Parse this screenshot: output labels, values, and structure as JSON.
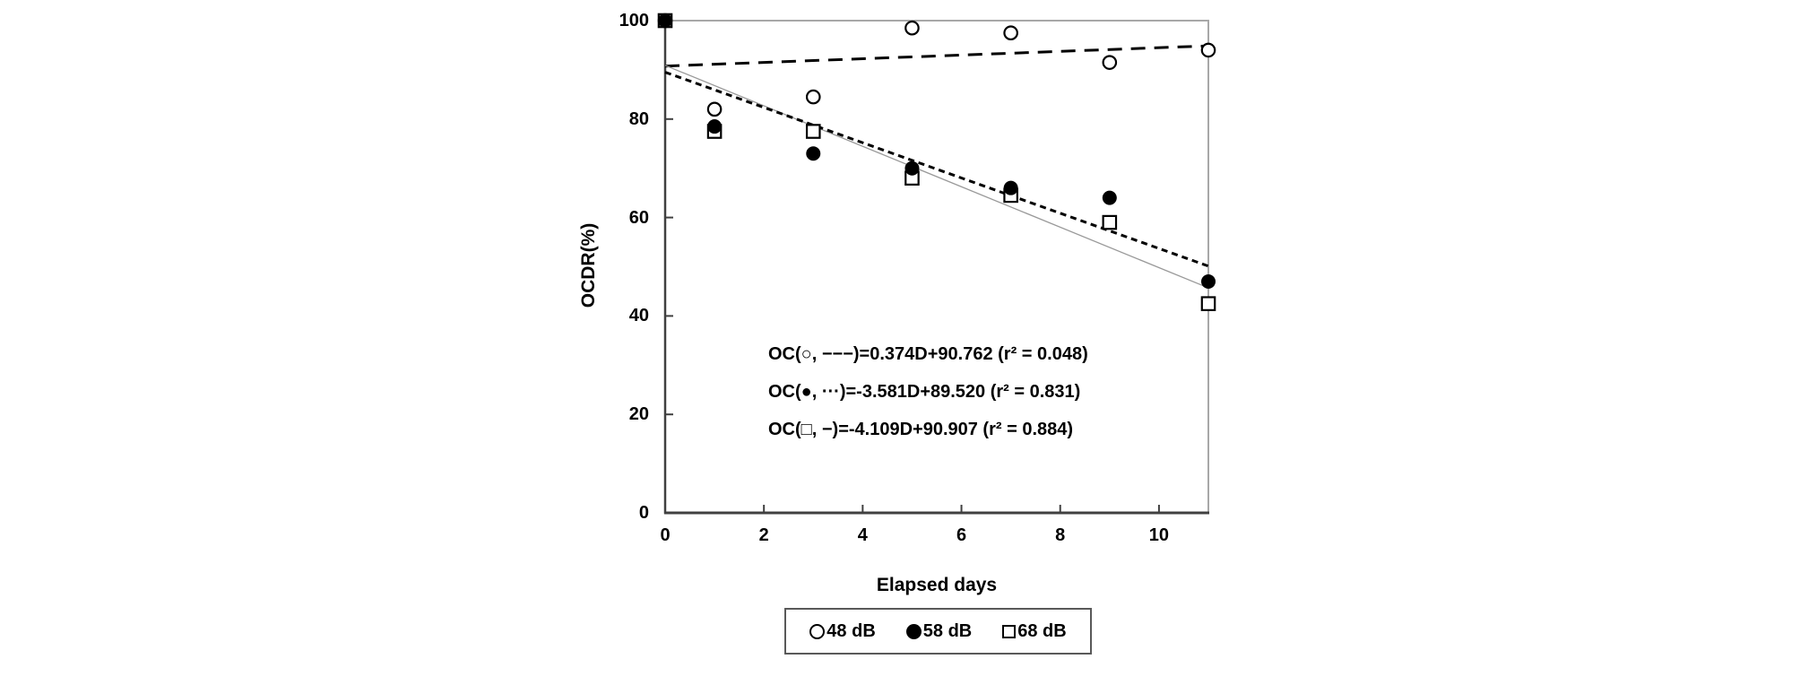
{
  "chart_data": {
    "type": "scatter",
    "title": "",
    "xlabel": "Elapsed days",
    "ylabel": "OCDR(%)",
    "xlim": [
      0,
      11
    ],
    "ylim": [
      0,
      100
    ],
    "x_ticks": [
      0,
      2,
      4,
      6,
      8,
      10
    ],
    "y_ticks": [
      0,
      20,
      40,
      60,
      80,
      100
    ],
    "grid": false,
    "legend_position": "bottom",
    "x": [
      0,
      1,
      3,
      5,
      7,
      9,
      11
    ],
    "series": [
      {
        "name": "48 dB",
        "marker": "open-circle",
        "color": "#000000",
        "values": [
          100,
          82,
          84.5,
          98.5,
          97.5,
          91.5,
          94
        ],
        "fit": {
          "slope": 0.374,
          "intercept": 90.762,
          "r2": 0.048,
          "line_style": "long-dash",
          "line_color": "#000000"
        }
      },
      {
        "name": "58 dB",
        "marker": "filled-circle",
        "color": "#000000",
        "values": [
          100,
          78.5,
          73,
          70,
          66,
          64,
          47
        ],
        "fit": {
          "slope": -3.581,
          "intercept": 89.52,
          "r2": 0.831,
          "line_style": "dotted",
          "line_color": "#000000"
        }
      },
      {
        "name": "68 dB",
        "marker": "open-square",
        "color": "#000000",
        "values": [
          100,
          77.5,
          77.5,
          68,
          64.5,
          59,
          42.5
        ],
        "fit": {
          "slope": -4.109,
          "intercept": 90.907,
          "r2": 0.884,
          "line_style": "solid",
          "line_color": "#999999"
        }
      }
    ],
    "annotations": [
      "OC(○, −−−)=0.374D+90.762 (r² = 0.048)",
      "OC(●, ···)=-3.581D+89.520 (r² = 0.831)",
      "OC(□, −)=-4.109D+90.907 (r² = 0.884)"
    ],
    "axis_color": "#404040",
    "frame_color": "#a8a8a8"
  }
}
